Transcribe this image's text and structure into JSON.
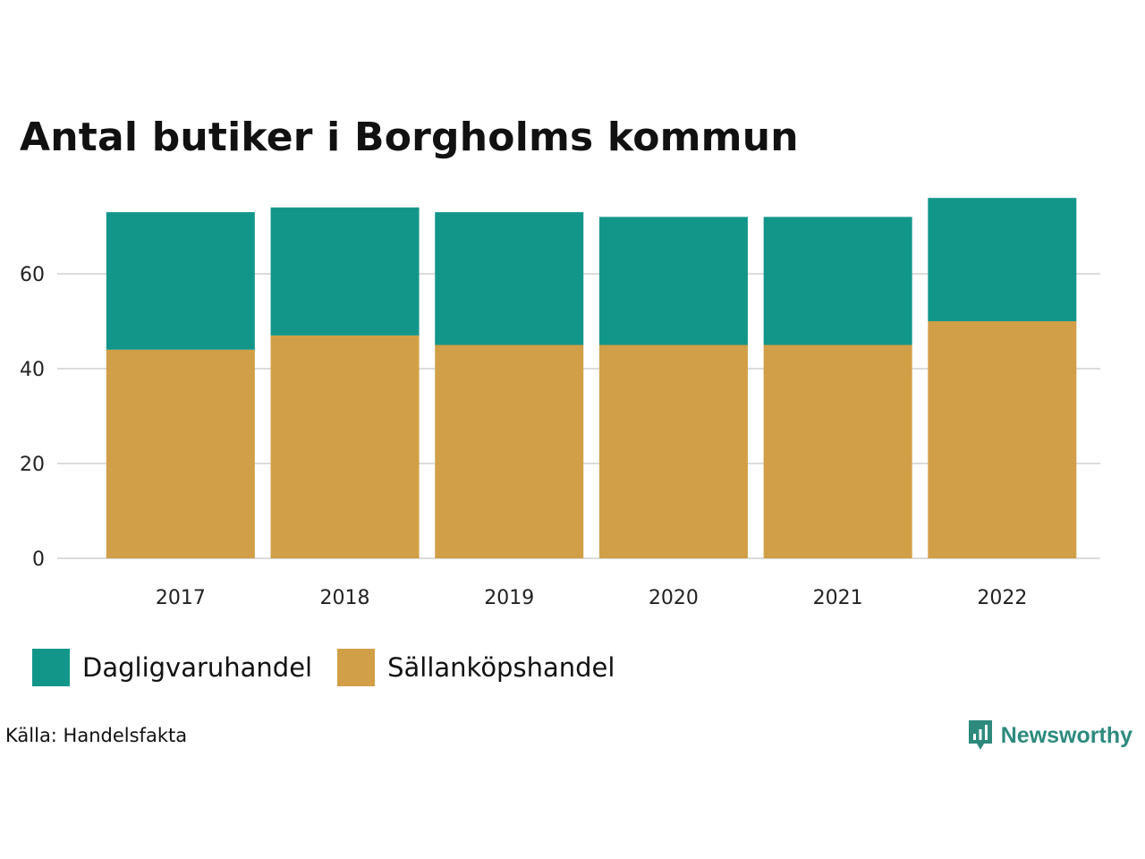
{
  "chart_data": {
    "type": "bar",
    "stacked": true,
    "title": "Antal butiker i Borgholms kommun",
    "categories": [
      "2017",
      "2018",
      "2019",
      "2020",
      "2021",
      "2022"
    ],
    "series": [
      {
        "name": "Sällanköpshandel",
        "color": "#d19f47",
        "values": [
          44,
          47,
          45,
          45,
          45,
          50
        ]
      },
      {
        "name": "Dagligvaruhandel",
        "color": "#13968a",
        "values": [
          29,
          27,
          28,
          27,
          27,
          26
        ]
      }
    ],
    "yticks": [
      "0",
      "20",
      "40",
      "60"
    ],
    "ylim": [
      0,
      76
    ],
    "grid": true,
    "legend_position": "bottom-left"
  },
  "legend": [
    {
      "label": "Dagligvaruhandel",
      "color": "#13968a"
    },
    {
      "label": "Sällanköpshandel",
      "color": "#d19f47"
    }
  ],
  "footer": {
    "source": "Källa: Handelsfakta",
    "brand": "Newsworthy"
  }
}
